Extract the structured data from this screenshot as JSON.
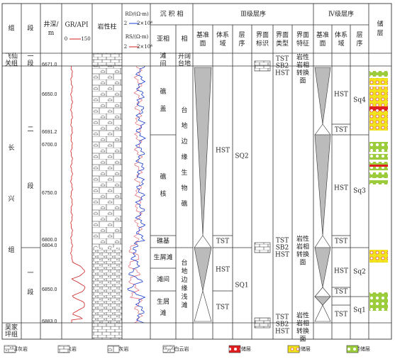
{
  "header": {
    "formation": "组",
    "member": "段",
    "depth": "井深/m",
    "gr": "GR/API",
    "gr_min": "0",
    "gr_max": "150",
    "rd": "RD/(Ω·m)",
    "rd_min": "2",
    "rd_max": "2×10⁴",
    "rs": "RS/(Ω·m)",
    "rs_min": "2",
    "rs_max": "2×10⁴",
    "lithology": "岩性柱",
    "sed_facies": "沉 积 相",
    "subfacies": "亚相",
    "facies": "相",
    "iii_title": "Ⅲ级层序",
    "iii_base": "基准面",
    "iii_tract": "体系域",
    "iii_seq": "层序",
    "iii_mark": "界面标识",
    "iii_type": "界面类型",
    "iii_feature": "界面特征",
    "iv_title": "Ⅳ级层序",
    "iv_base": "基准面",
    "iv_tract": "体系域",
    "iv_seq": "层序",
    "reservoir": "储层"
  },
  "formations": [
    "飞仙关组",
    "长兴组",
    "吴家坪组"
  ],
  "members": [
    "一段",
    "二段",
    "一段"
  ],
  "depth_labels": [
    "6671.0",
    "6650.0",
    "6691.2",
    "6700.0",
    "6750.0",
    "6800.0",
    "6804.0",
    "6850.0",
    "6883.0"
  ],
  "subfacies": [
    "滩间",
    "礁盖",
    "礁核",
    "礁基",
    "生屑滩",
    "滩间",
    "生屑滩"
  ],
  "facies": [
    "开阔台地",
    "台地边缘生物礁",
    "台地边缘浅滩"
  ],
  "iii": {
    "systems_tracts": [
      "HST",
      "TST",
      "HST",
      "TST"
    ],
    "sequences": [
      "SQ2",
      "SQ1"
    ],
    "surface_types": [
      [
        "TST",
        "SB2",
        "HST"
      ],
      [
        "TST",
        "SB2",
        "HST"
      ],
      [
        "TST",
        "SB2",
        "HST"
      ]
    ],
    "surface_features": [
      "岩性岩相转换面",
      "岩性岩相转换面",
      "岩性岩相转换面"
    ]
  },
  "iv": {
    "systems_tracts": [
      "HST",
      "TST",
      "HST",
      "TST",
      "HST",
      "TST",
      "TST"
    ],
    "sequences": [
      "Sq4",
      "Sq3",
      "Sq2",
      "Sq1"
    ]
  },
  "legend": [
    "生屑灰岩",
    "灰岩",
    "礁灰岩",
    "生屑白云岩",
    "Ⅰ类储层",
    "Ⅱ类储层",
    "Ⅲ类储层"
  ]
}
